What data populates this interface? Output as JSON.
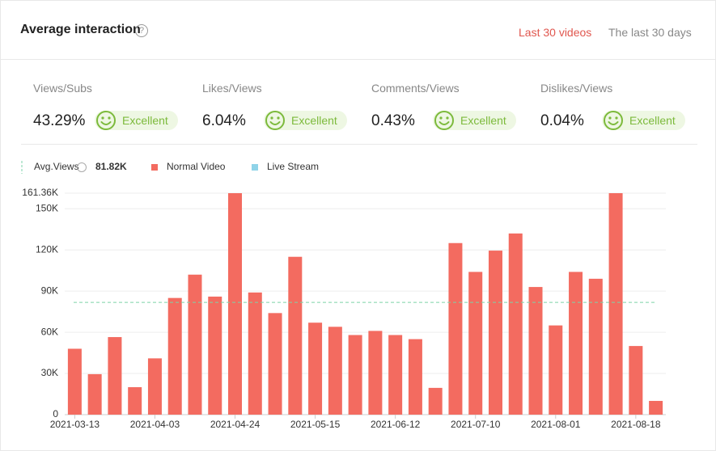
{
  "header": {
    "title": "Average interaction",
    "tabs": [
      "Last 30 videos",
      "The last 30 days"
    ]
  },
  "metrics": [
    {
      "label": "Views/Subs",
      "value": "43.29%",
      "rating": "Excellent"
    },
    {
      "label": "Likes/Views",
      "value": "6.04%",
      "rating": "Excellent"
    },
    {
      "label": "Comments/Views",
      "value": "0.43%",
      "rating": "Excellent"
    },
    {
      "label": "Dislikes/Views",
      "value": "0.04%",
      "rating": "Excellent"
    }
  ],
  "chart_data": {
    "type": "bar",
    "avg_label": "Avg.Views",
    "avg": {
      "value": 81.82,
      "label": "81.82K"
    },
    "avg_color": "#7cd3a8",
    "categories": [
      "2021-03-13",
      null,
      null,
      null,
      "2021-04-03",
      null,
      null,
      null,
      "2021-04-24",
      null,
      null,
      null,
      "2021-05-15",
      null,
      null,
      null,
      "2021-06-12",
      null,
      null,
      null,
      "2021-07-10",
      null,
      null,
      null,
      "2021-08-01",
      null,
      null,
      null,
      "2021-08-18",
      null
    ],
    "series": [
      {
        "name": "Normal Video",
        "color": "#f36b60",
        "values": [
          48,
          29.5,
          56.5,
          20,
          41,
          85,
          102,
          86,
          161.36,
          89,
          74,
          115,
          67,
          64,
          58,
          61,
          58,
          55,
          19.5,
          125,
          104,
          119.5,
          132,
          93,
          65,
          104,
          99,
          161.36,
          50,
          10
        ]
      },
      {
        "name": "Live Stream",
        "color": "#8fd3e8",
        "values": [
          null,
          null,
          null,
          null,
          null,
          null,
          null,
          null,
          null,
          null,
          null,
          null,
          null,
          null,
          null,
          null,
          null,
          null,
          null,
          null,
          null,
          null,
          null,
          null,
          null,
          null,
          null,
          null,
          null,
          null
        ]
      }
    ],
    "ylim": [
      0,
      161.36
    ],
    "yticks": [
      {
        "value": 0,
        "label": "0"
      },
      {
        "value": 30,
        "label": "30K"
      },
      {
        "value": 60,
        "label": "60K"
      },
      {
        "value": 90,
        "label": "90K"
      },
      {
        "value": 120,
        "label": "120K"
      },
      {
        "value": 150,
        "label": "150K"
      },
      {
        "value": 161.36,
        "label": "161.36K"
      }
    ],
    "grid": true
  }
}
